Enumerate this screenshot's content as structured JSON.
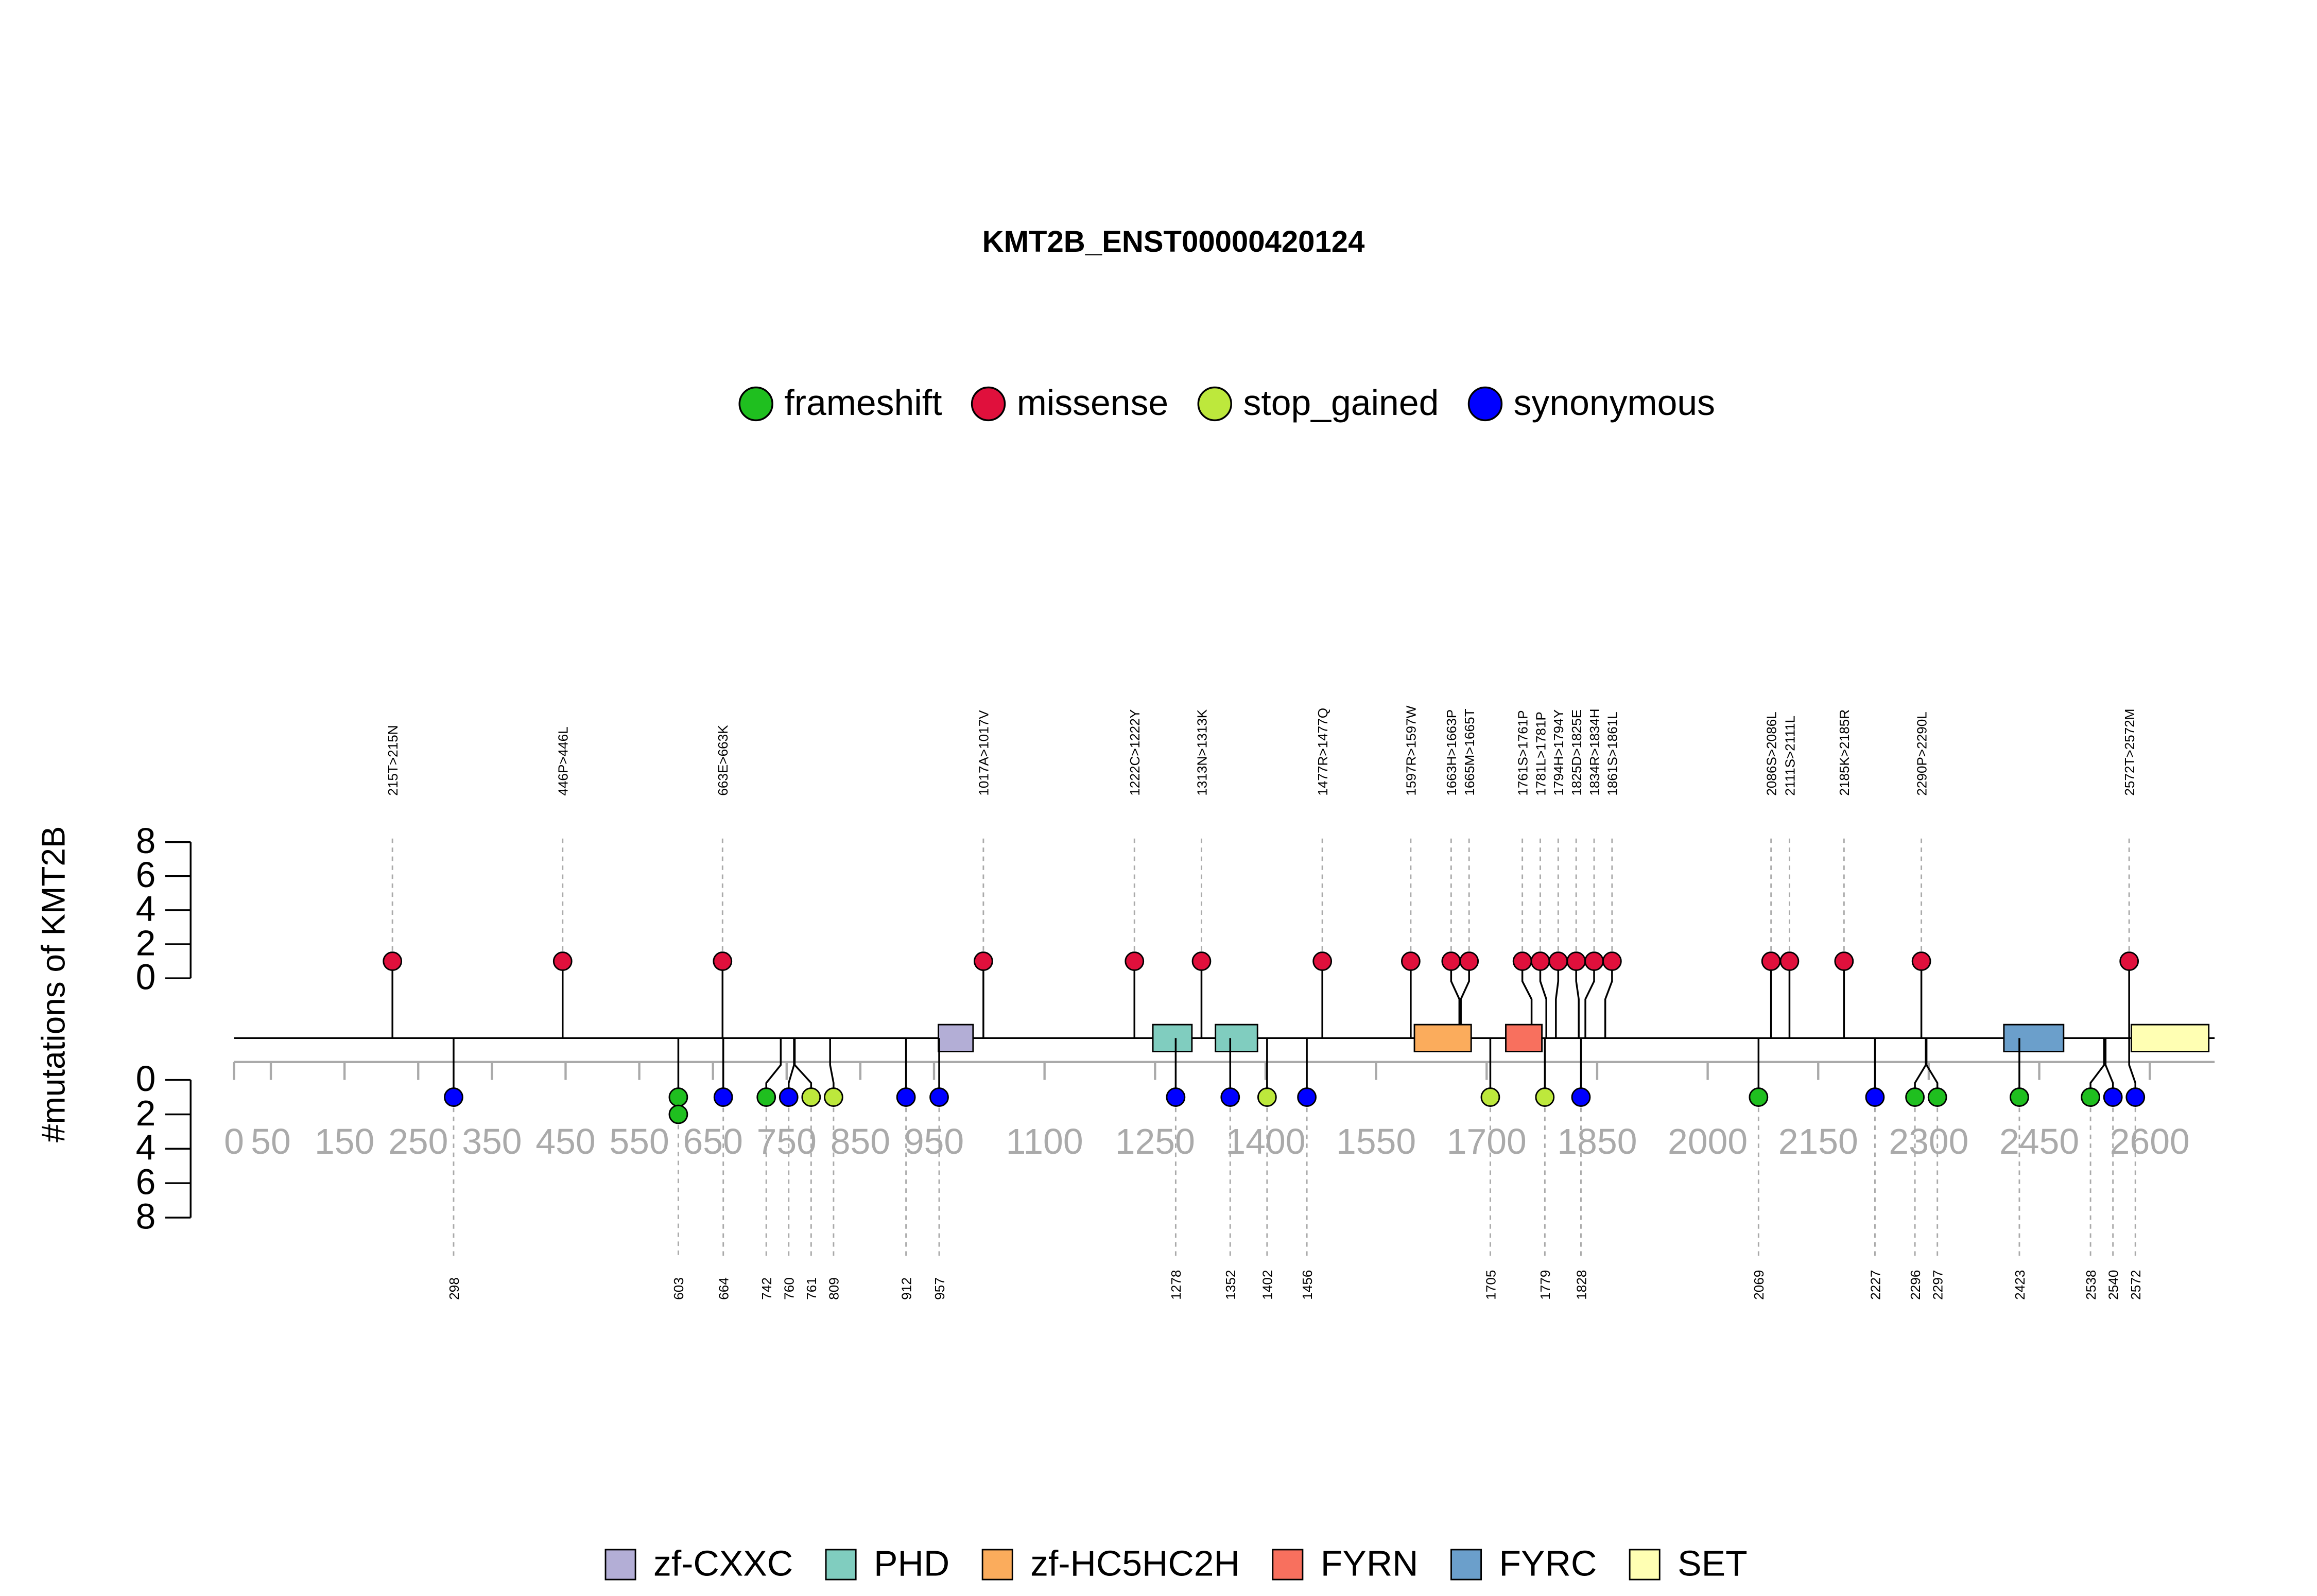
{
  "chart_data": {
    "type": "lollipop",
    "title": "KMT2B_ENST00000420124",
    "ylabel": "#mutations of KMT2B",
    "xlim": [
      0,
      2688
    ],
    "xticks": [
      0,
      50,
      150,
      250,
      350,
      450,
      550,
      650,
      750,
      850,
      950,
      1100,
      1250,
      1400,
      1550,
      1700,
      1850,
      2000,
      2150,
      2300,
      2450,
      2600
    ],
    "ylim": [
      0,
      8
    ],
    "yticks": [
      0,
      2,
      4,
      6,
      8
    ],
    "mutation_types": [
      {
        "name": "frameshift",
        "color": "#1fbf1f"
      },
      {
        "name": "missense",
        "color": "#e0103c"
      },
      {
        "name": "stop_gained",
        "color": "#bde83c"
      },
      {
        "name": "synonymous",
        "color": "#0000ff"
      }
    ],
    "domains": [
      {
        "name": "zf-CXXC",
        "color": "#b3aed6",
        "regions": [
          [
            956,
            1003
          ]
        ]
      },
      {
        "name": "PHD",
        "color": "#80cdbf",
        "regions": [
          [
            1247,
            1300
          ],
          [
            1332,
            1389
          ]
        ]
      },
      {
        "name": "zf-HC5HC2H",
        "color": "#fbac5c",
        "regions": [
          [
            1602,
            1679
          ]
        ]
      },
      {
        "name": "FYRN",
        "color": "#f8705e",
        "regions": [
          [
            1726,
            1775
          ]
        ]
      },
      {
        "name": "FYRC",
        "color": "#6b9fcb",
        "regions": [
          [
            2402,
            2483
          ]
        ]
      },
      {
        "name": "SET",
        "color": "#ffffb3",
        "regions": [
          [
            2575,
            2680
          ]
        ]
      }
    ],
    "top": [
      {
        "label": "215T>215N",
        "position": 215,
        "type": "missense",
        "count": 1
      },
      {
        "label": "446P>446L",
        "position": 446,
        "type": "missense",
        "count": 1
      },
      {
        "label": "663E>663K",
        "position": 663,
        "type": "missense",
        "count": 1
      },
      {
        "label": "1017A>1017V",
        "position": 1017,
        "type": "missense",
        "count": 1
      },
      {
        "label": "1222C>1222Y",
        "position": 1222,
        "type": "missense",
        "count": 1
      },
      {
        "label": "1313N>1313K",
        "position": 1313,
        "type": "missense",
        "count": 1
      },
      {
        "label": "1477R>1477Q",
        "position": 1477,
        "type": "missense",
        "count": 1
      },
      {
        "label": "1597R>1597W",
        "position": 1597,
        "type": "missense",
        "count": 1
      },
      {
        "label": "1663H>1663P",
        "position": 1663,
        "type": "missense",
        "count": 1
      },
      {
        "label": "1665M>1665T",
        "position": 1665,
        "type": "missense",
        "count": 1
      },
      {
        "label": "1761S>1761P",
        "position": 1761,
        "type": "missense",
        "count": 1
      },
      {
        "label": "1781L>1781P",
        "position": 1781,
        "type": "missense",
        "count": 1
      },
      {
        "label": "1794H>1794Y",
        "position": 1794,
        "type": "missense",
        "count": 1
      },
      {
        "label": "1825D>1825E",
        "position": 1825,
        "type": "missense",
        "count": 1
      },
      {
        "label": "1834R>1834H",
        "position": 1834,
        "type": "missense",
        "count": 1
      },
      {
        "label": "1861S>1861L",
        "position": 1861,
        "type": "missense",
        "count": 1
      },
      {
        "label": "2086S>2086L",
        "position": 2086,
        "type": "missense",
        "count": 1
      },
      {
        "label": "2111S>2111L",
        "position": 2111,
        "type": "missense",
        "count": 1
      },
      {
        "label": "2185K>2185R",
        "position": 2185,
        "type": "missense",
        "count": 1
      },
      {
        "label": "2290P>2290L",
        "position": 2290,
        "type": "missense",
        "count": 1
      },
      {
        "label": "2572T>2572M",
        "position": 2572,
        "type": "missense",
        "count": 1
      }
    ],
    "bottom": [
      {
        "position": 298,
        "type": "synonymous",
        "count": 1
      },
      {
        "position": 603,
        "type": "frameshift",
        "count": 2
      },
      {
        "position": 664,
        "type": "synonymous",
        "count": 1
      },
      {
        "position": 742,
        "type": "frameshift",
        "count": 1
      },
      {
        "position": 760,
        "type": "synonymous",
        "count": 1
      },
      {
        "position": 761,
        "type": "stop_gained",
        "count": 1
      },
      {
        "position": 809,
        "type": "stop_gained",
        "count": 1
      },
      {
        "position": 912,
        "type": "synonymous",
        "count": 1
      },
      {
        "position": 957,
        "type": "synonymous",
        "count": 1
      },
      {
        "position": 1278,
        "type": "synonymous",
        "count": 1
      },
      {
        "position": 1352,
        "type": "synonymous",
        "count": 1
      },
      {
        "position": 1402,
        "type": "stop_gained",
        "count": 1
      },
      {
        "position": 1456,
        "type": "synonymous",
        "count": 1
      },
      {
        "position": 1705,
        "type": "stop_gained",
        "count": 1
      },
      {
        "position": 1779,
        "type": "stop_gained",
        "count": 1
      },
      {
        "position": 1828,
        "type": "synonymous",
        "count": 1
      },
      {
        "position": 2069,
        "type": "frameshift",
        "count": 1
      },
      {
        "position": 2227,
        "type": "synonymous",
        "count": 1
      },
      {
        "position": 2296,
        "type": "frameshift",
        "count": 1
      },
      {
        "position": 2297,
        "type": "frameshift",
        "count": 1
      },
      {
        "position": 2423,
        "type": "frameshift",
        "count": 1
      },
      {
        "position": 2538,
        "type": "frameshift",
        "count": 1
      },
      {
        "position": 2540,
        "type": "synonymous",
        "count": 1
      },
      {
        "position": 2572,
        "type": "synonymous",
        "count": 1
      }
    ]
  }
}
